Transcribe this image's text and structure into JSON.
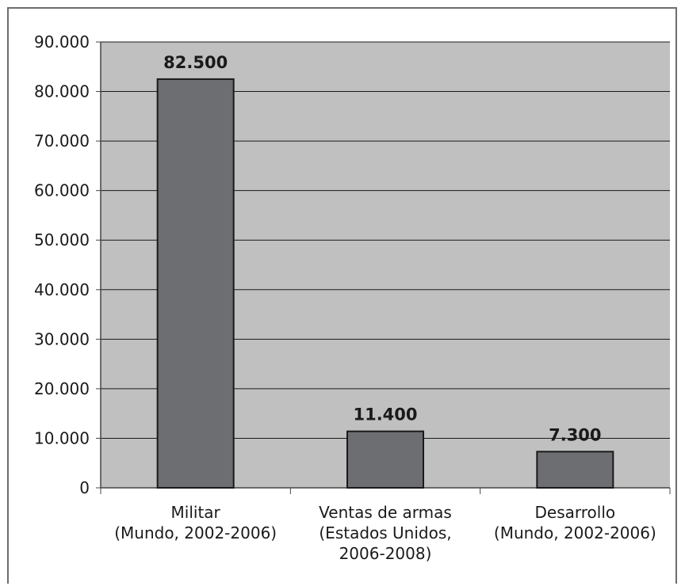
{
  "chart_data": {
    "type": "bar",
    "categories": [
      [
        "Militar",
        "(Mundo, 2002-2006)"
      ],
      [
        "Ventas de armas",
        "(Estados Unidos,",
        "2006-2008)"
      ],
      [
        "Desarrollo",
        "(Mundo, 2002-2006)"
      ]
    ],
    "values": [
      82500,
      11400,
      7300
    ],
    "data_labels": [
      "82.500",
      "11.400",
      "7.300"
    ],
    "ylim": [
      0,
      90000
    ],
    "yticks": [
      0,
      10000,
      20000,
      30000,
      40000,
      50000,
      60000,
      70000,
      80000,
      90000
    ],
    "ytick_labels": [
      "0",
      "10.000",
      "20.000",
      "30.000",
      "40.000",
      "50.000",
      "60.000",
      "70.000",
      "80.000",
      "90.000"
    ],
    "grid": true,
    "colors": {
      "plot_background": "#c0c0c0",
      "bar_fill": "#6d6e71",
      "bar_stroke": "#1a1a1a",
      "gridline": "#1a1a1a",
      "frame": "#6e6e6e"
    }
  }
}
